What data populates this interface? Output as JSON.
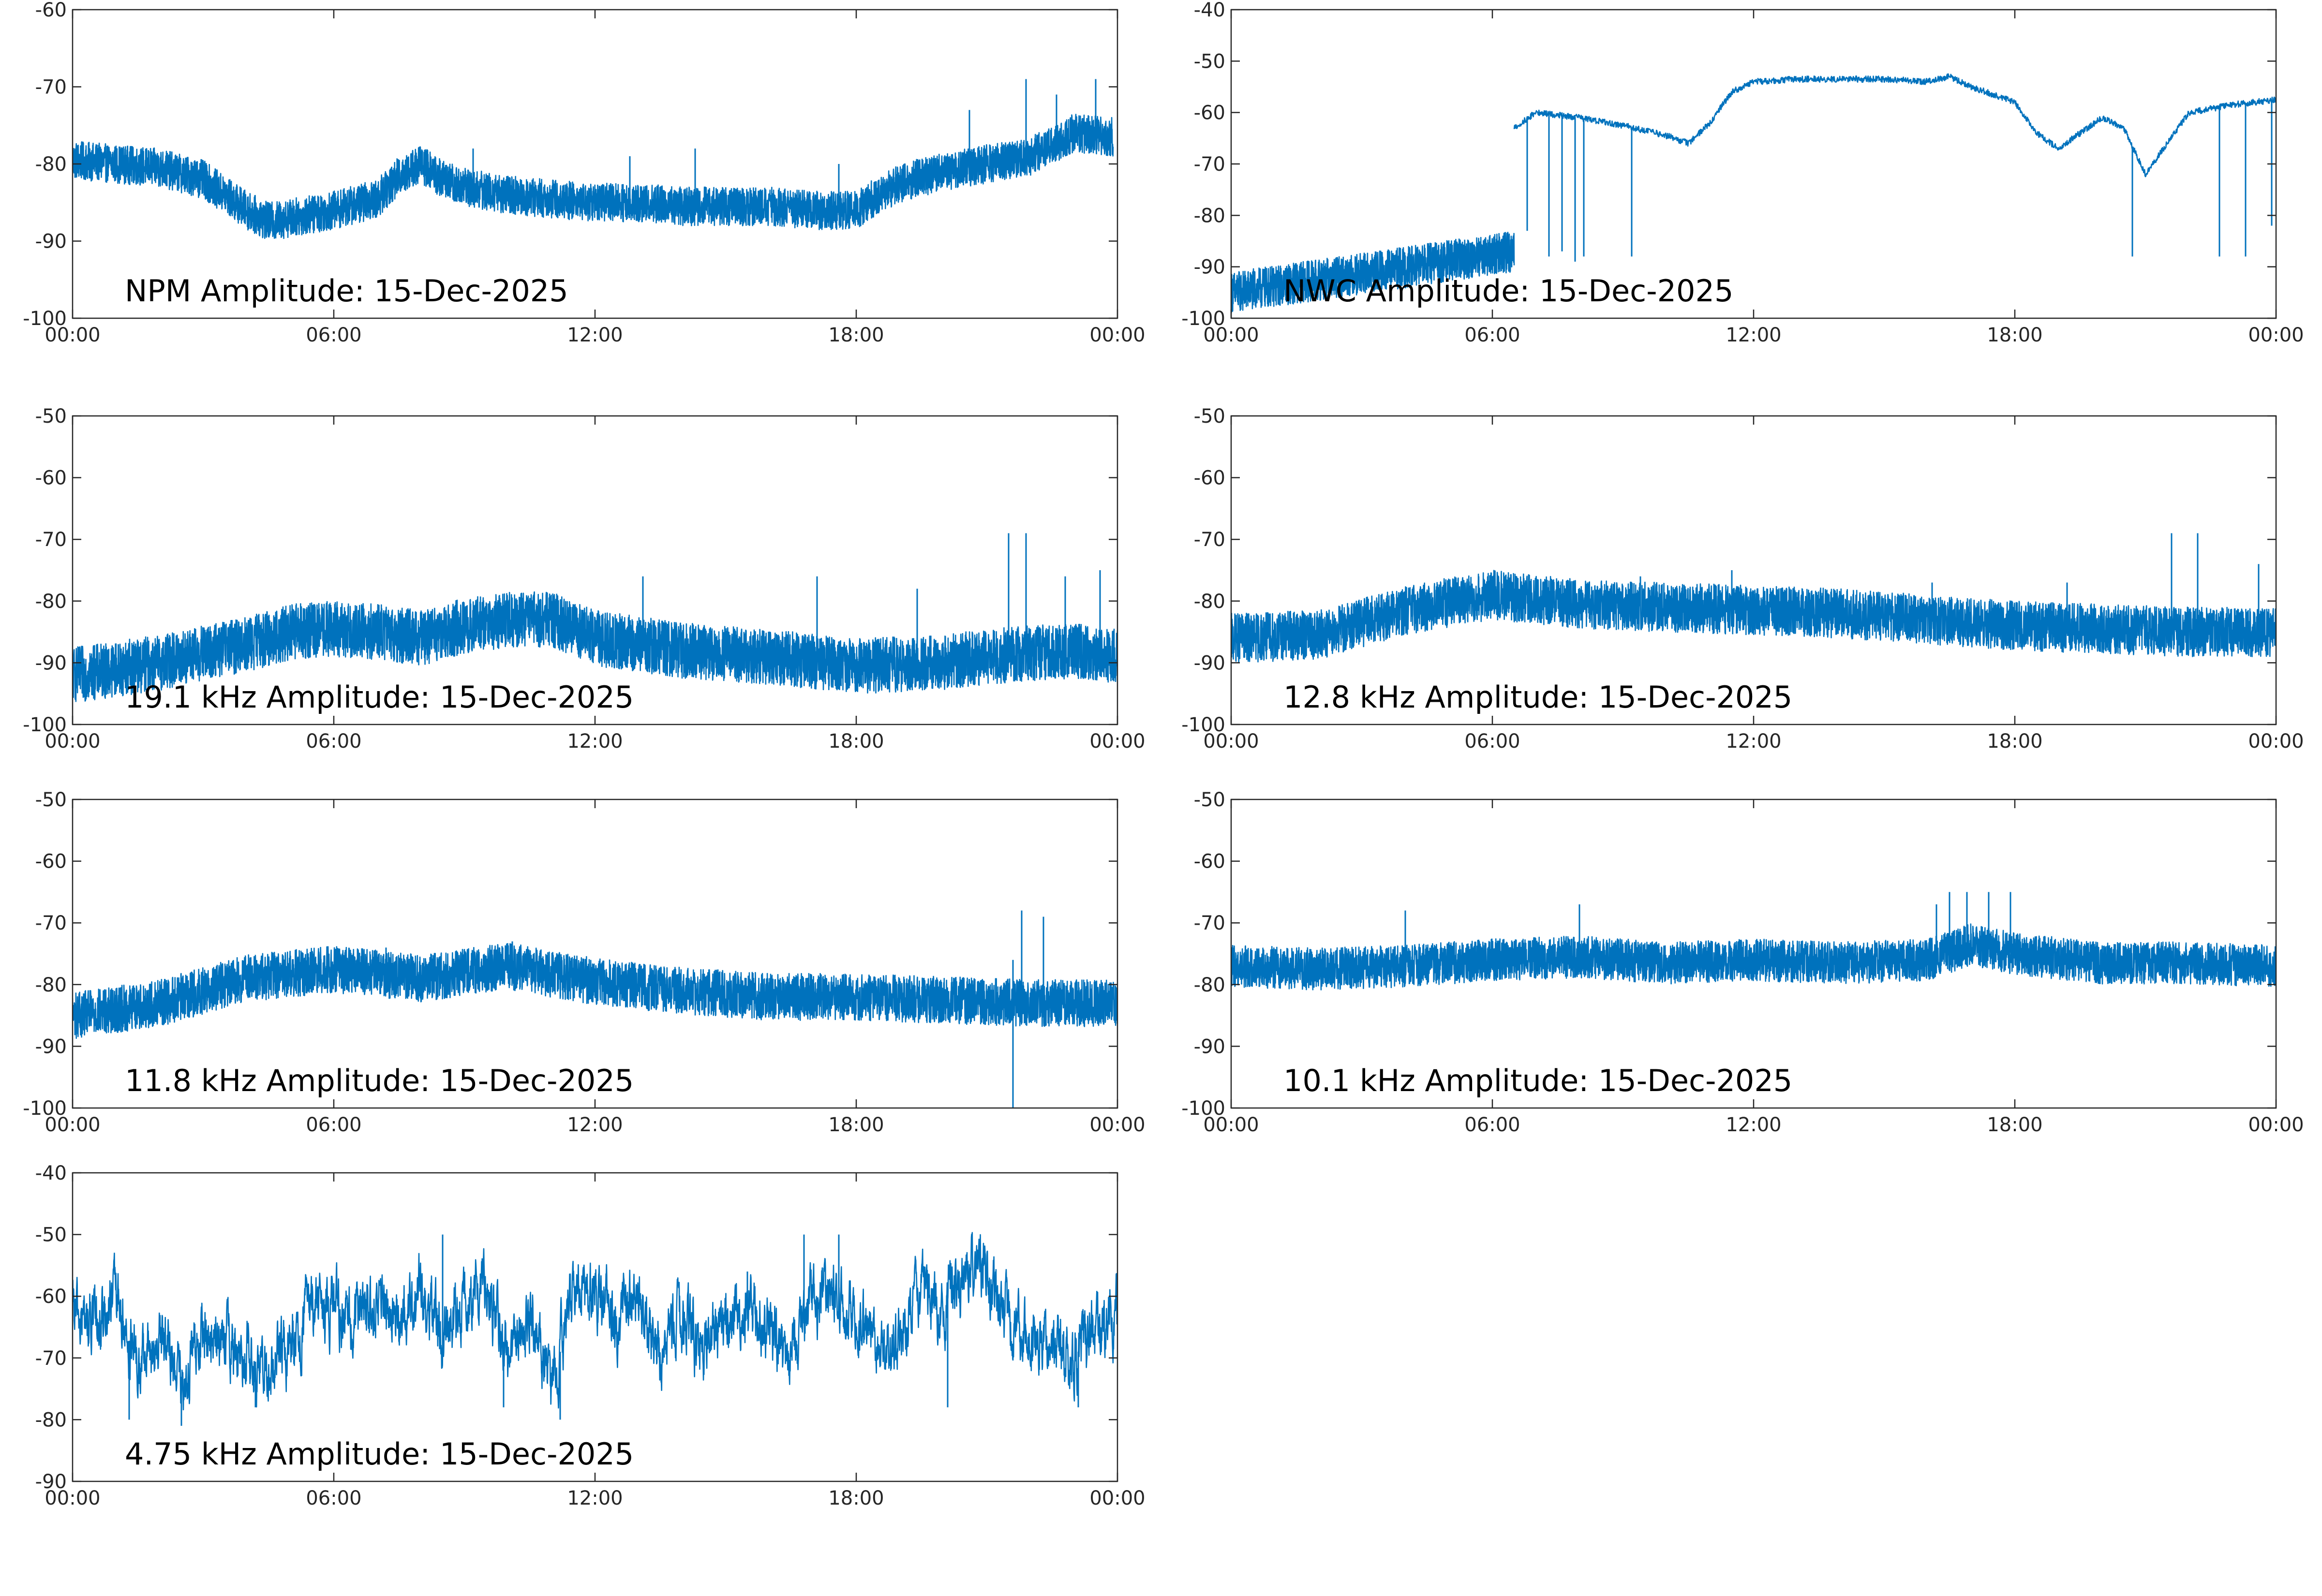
{
  "figure": {
    "background": "#ffffff",
    "series_color": "#0072BD"
  },
  "chart_data": [
    {
      "id": "npm",
      "type": "line",
      "title": "NPM Amplitude: 15-Dec-2025",
      "xticks": [
        "00:00",
        "06:00",
        "12:00",
        "18:00",
        "00:00"
      ],
      "ylim": [
        -100,
        -60
      ],
      "yticks": [
        "-60",
        "-70",
        "-80",
        "-90",
        "-100"
      ],
      "style": "band",
      "noise": 2.5,
      "series": [
        {
          "name": "NPM",
          "x": [
            0,
            1,
            2,
            3,
            4,
            4.5,
            5,
            6,
            7,
            7.5,
            8,
            8.5,
            9,
            10,
            11,
            12,
            13,
            14,
            15,
            16,
            17,
            18,
            18.5,
            19,
            20,
            21,
            22,
            22.5,
            23,
            23.9
          ],
          "y": [
            -79.5,
            -80,
            -80.5,
            -82,
            -86,
            -87.5,
            -87,
            -86,
            -84.5,
            -81.5,
            -80,
            -82,
            -83,
            -84,
            -84.5,
            -85,
            -85,
            -85.5,
            -85.5,
            -85.5,
            -86,
            -86,
            -84,
            -82.5,
            -81,
            -80,
            -79,
            -77.5,
            -76,
            -76.5
          ]
        }
      ],
      "spikes": [
        [
          20.6,
          -73
        ],
        [
          21.9,
          -69
        ],
        [
          22.6,
          -71
        ],
        [
          23.5,
          -69
        ],
        [
          14.3,
          -78
        ],
        [
          12.8,
          -79
        ],
        [
          9.2,
          -78
        ],
        [
          17.6,
          -80
        ]
      ]
    },
    {
      "id": "nwc",
      "type": "line",
      "title": "NWC Amplitude: 15-Dec-2025",
      "xticks": [
        "00:00",
        "06:00",
        "12:00",
        "18:00",
        "00:00"
      ],
      "ylim": [
        -100,
        -40
      ],
      "yticks": [
        "-40",
        "-50",
        "-60",
        "-70",
        "-80",
        "-90",
        "-100"
      ],
      "style": "line",
      "noise": 0.6,
      "series": [
        {
          "name": "NWC",
          "x": [
            6.5,
            7,
            8,
            9,
            10,
            10.5,
            11,
            11.5,
            12,
            13,
            14,
            15,
            16,
            16.5,
            17,
            18,
            18.5,
            19,
            20,
            20.5,
            21,
            22,
            23,
            24
          ],
          "y": [
            -63,
            -60,
            -61,
            -62.5,
            -64.5,
            -66,
            -62,
            -56,
            -54,
            -53.5,
            -53.5,
            -53.5,
            -54,
            -53,
            -55,
            -58,
            -64,
            -67,
            -61,
            -63,
            -72,
            -60,
            -58.5,
            -57.5
          ]
        }
      ],
      "band_x": [
        0,
        6.5
      ],
      "band_y": [
        -95,
        -87
      ],
      "band_noise": 4,
      "spikes": [
        [
          6.8,
          -83
        ],
        [
          7.3,
          -88
        ],
        [
          7.6,
          -87
        ],
        [
          7.9,
          -89
        ],
        [
          8.1,
          -88
        ],
        [
          9.2,
          -88
        ],
        [
          20.7,
          -88
        ],
        [
          22.7,
          -88
        ],
        [
          23.3,
          -88
        ],
        [
          23.9,
          -82
        ]
      ]
    },
    {
      "id": "k19",
      "type": "line",
      "title": "19.1 kHz Amplitude: 15-Dec-2025",
      "xticks": [
        "00:00",
        "06:00",
        "12:00",
        "18:00",
        "00:00"
      ],
      "ylim": [
        -100,
        -50
      ],
      "yticks": [
        "-50",
        "-60",
        "-70",
        "-80",
        "-90",
        "-100"
      ],
      "style": "band",
      "noise": 4.5,
      "series": [
        {
          "name": "19.1 kHz",
          "x": [
            0,
            2,
            4,
            5,
            6,
            7,
            8,
            9,
            10,
            11,
            12,
            14,
            16,
            18,
            20,
            21,
            22,
            23,
            24
          ],
          "y": [
            -92,
            -90,
            -87,
            -85,
            -84.5,
            -85,
            -86,
            -84,
            -83,
            -83,
            -86,
            -88,
            -89,
            -90.5,
            -90,
            -89,
            -88.5,
            -88,
            -89
          ]
        }
      ],
      "spikes": [
        [
          21.5,
          -69
        ],
        [
          21.9,
          -69
        ],
        [
          17.1,
          -76
        ],
        [
          23.6,
          -75
        ],
        [
          13.1,
          -76
        ],
        [
          19.4,
          -78
        ],
        [
          22.8,
          -76
        ]
      ]
    },
    {
      "id": "k12_8",
      "type": "line",
      "title": "12.8 kHz Amplitude: 15-Dec-2025",
      "xticks": [
        "00:00",
        "06:00",
        "12:00",
        "18:00",
        "00:00"
      ],
      "ylim": [
        -100,
        -50
      ],
      "yticks": [
        "-50",
        "-60",
        "-70",
        "-80",
        "-90",
        "-100"
      ],
      "style": "band",
      "noise": 4,
      "series": [
        {
          "name": "12.8 kHz",
          "x": [
            0,
            2,
            4,
            6,
            8,
            10,
            12,
            14,
            16,
            18,
            20,
            22,
            24
          ],
          "y": [
            -86,
            -85.5,
            -81.5,
            -79,
            -80.5,
            -81,
            -81.5,
            -82,
            -83,
            -84,
            -84.5,
            -85,
            -85
          ]
        }
      ],
      "spikes": [
        [
          21.6,
          -69
        ],
        [
          22.2,
          -69
        ],
        [
          11.5,
          -75
        ],
        [
          9.4,
          -76
        ],
        [
          16.1,
          -77
        ],
        [
          23.6,
          -74
        ],
        [
          19.2,
          -77
        ]
      ]
    },
    {
      "id": "k11_8",
      "type": "line",
      "title": "11.8 kHz Amplitude: 15-Dec-2025",
      "xticks": [
        "00:00",
        "06:00",
        "12:00",
        "18:00",
        "00:00"
      ],
      "ylim": [
        -100,
        -50
      ],
      "yticks": [
        "-50",
        "-60",
        "-70",
        "-80",
        "-90",
        "-100"
      ],
      "style": "band",
      "noise": 3.8,
      "series": [
        {
          "name": "11.8 kHz",
          "x": [
            0,
            2,
            4,
            6,
            8,
            10,
            12,
            14,
            16,
            18,
            20,
            22,
            24
          ],
          "y": [
            -85,
            -83,
            -79,
            -77.5,
            -79,
            -77,
            -79.5,
            -81,
            -82,
            -82,
            -82.5,
            -83,
            -83
          ]
        }
      ],
      "spikes": [
        [
          21.8,
          -68
        ],
        [
          22.3,
          -69
        ],
        [
          21.6,
          -76
        ],
        [
          7.2,
          -74
        ],
        [
          14.6,
          -78
        ],
        [
          10.1,
          -73
        ]
      ],
      "drops": [
        [
          21.6,
          -100
        ]
      ]
    },
    {
      "id": "k10_1",
      "type": "line",
      "title": "10.1 kHz Amplitude: 15-Dec-2025",
      "xticks": [
        "00:00",
        "06:00",
        "12:00",
        "18:00",
        "00:00"
      ],
      "ylim": [
        -100,
        -50
      ],
      "yticks": [
        "-50",
        "-60",
        "-70",
        "-80",
        "-90",
        "-100"
      ],
      "style": "band",
      "noise": 3.4,
      "series": [
        {
          "name": "10.1 kHz",
          "x": [
            0,
            2,
            4,
            6,
            8,
            10,
            12,
            14,
            16,
            17,
            18,
            20,
            22,
            24
          ],
          "y": [
            -77,
            -77.5,
            -77,
            -76,
            -75.5,
            -76.5,
            -76,
            -76.5,
            -76,
            -73.5,
            -75,
            -76.5,
            -76.5,
            -77
          ]
        }
      ],
      "spikes": [
        [
          16.5,
          -65
        ],
        [
          16.9,
          -65
        ],
        [
          17.4,
          -65
        ],
        [
          17.9,
          -65
        ],
        [
          16.2,
          -67
        ],
        [
          4.0,
          -68
        ],
        [
          8.0,
          -67
        ]
      ]
    },
    {
      "id": "k4_75",
      "type": "line",
      "title": "4.75 kHz Amplitude: 15-Dec-2025",
      "xticks": [
        "00:00",
        "06:00",
        "12:00",
        "18:00",
        "00:00"
      ],
      "ylim": [
        -90,
        -40
      ],
      "yticks": [
        "-40",
        "-50",
        "-60",
        "-70",
        "-80",
        "-90"
      ],
      "style": "noisy",
      "noise": 3.5,
      "series": [
        {
          "name": "4.75 kHz",
          "x": [
            0,
            0.5,
            1,
            1.5,
            2,
            2.5,
            3,
            3.5,
            4,
            4.5,
            5,
            5.5,
            6,
            6.5,
            7,
            7.5,
            8,
            8.5,
            9,
            9.5,
            10,
            10.5,
            11,
            11.5,
            12,
            12.5,
            13,
            13.5,
            14,
            14.5,
            15,
            15.5,
            16,
            16.5,
            17,
            17.5,
            18,
            18.5,
            19,
            19.5,
            20,
            20.5,
            21,
            21.5,
            22,
            22.5,
            23,
            23.5,
            24
          ],
          "y": [
            -63,
            -65,
            -60,
            -72,
            -67,
            -74,
            -66,
            -68,
            -69,
            -73,
            -67,
            -62,
            -62,
            -64,
            -60,
            -64,
            -58,
            -68,
            -60,
            -58,
            -70,
            -64,
            -75,
            -60,
            -59,
            -64,
            -60,
            -70,
            -63,
            -68,
            -65,
            -62,
            -65,
            -71,
            -60,
            -59,
            -64,
            -70,
            -66,
            -60,
            -61,
            -57,
            -55,
            -64,
            -68,
            -66,
            -70,
            -65,
            -62
          ]
        }
      ],
      "spikes": [
        [
          8.5,
          -50
        ],
        [
          16.8,
          -50
        ],
        [
          17.6,
          -50
        ],
        [
          15.5,
          -56
        ],
        [
          5.5,
          -58
        ]
      ],
      "drops": [
        [
          2.5,
          -81
        ],
        [
          1.3,
          -80
        ],
        [
          11.2,
          -80
        ],
        [
          4.2,
          -78
        ],
        [
          9.9,
          -78
        ],
        [
          20.1,
          -78
        ],
        [
          23.1,
          -78
        ]
      ]
    }
  ]
}
